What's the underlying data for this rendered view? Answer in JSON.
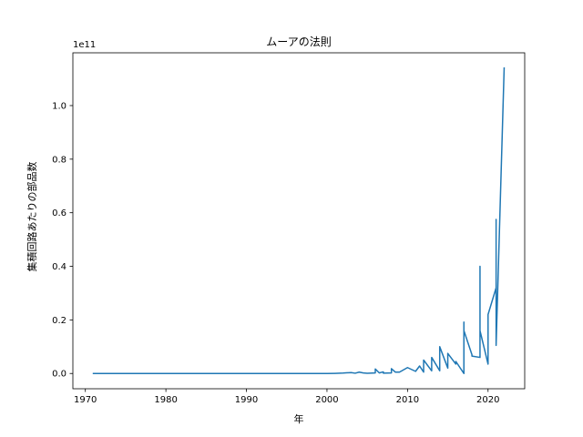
{
  "chart_data": {
    "type": "line",
    "title": "ムーアの法則",
    "xlabel": "年",
    "ylabel": "集積回路あたりの部品数",
    "offset_label": "1e11",
    "xlim": [
      1968.45,
      2024.55
    ],
    "ylim": [
      -0.057,
      1.197
    ],
    "x_ticks": [
      1970,
      1980,
      1990,
      2000,
      2010,
      2020
    ],
    "y_ticks": [
      0.0,
      0.2,
      0.4,
      0.6,
      0.8,
      1.0
    ],
    "y_tick_labels": [
      "0.0",
      "0.2",
      "0.4",
      "0.6",
      "0.8",
      "1.0"
    ],
    "y_scale_note": "values shown in units of 1e11",
    "grid": false,
    "line_color": "#1f77b4",
    "series": [
      {
        "x": [
          1971,
          1980,
          1990,
          2000,
          2001,
          2002,
          2003,
          2003.5,
          2004,
          2004.5,
          2005,
          2006,
          2006,
          2006.5,
          2007,
          2007,
          2008,
          2008,
          2008.5,
          2009,
          2010,
          2011,
          2011.5,
          2012,
          2012,
          2013,
          2013,
          2014,
          2014,
          2015,
          2015,
          2016,
          2016,
          2017,
          2017,
          2017,
          2018,
          2018,
          2019,
          2019,
          2019,
          2020,
          2020,
          2021,
          2021,
          2021,
          2022
        ],
        "y": [
          0.0,
          0.0,
          0.0,
          0.0,
          0.0005,
          0.0015,
          0.0035,
          0.001,
          0.005,
          0.002,
          0.0008,
          0.002,
          0.017,
          0.002,
          0.006,
          0.001,
          0.002,
          0.018,
          0.005,
          0.005,
          0.022,
          0.008,
          0.028,
          0.005,
          0.05,
          0.01,
          0.06,
          0.01,
          0.1,
          0.02,
          0.075,
          0.035,
          0.045,
          0.0,
          0.192,
          0.16,
          0.07,
          0.065,
          0.06,
          0.4,
          0.16,
          0.035,
          0.22,
          0.32,
          0.575,
          0.105,
          1.14
        ]
      }
    ]
  }
}
